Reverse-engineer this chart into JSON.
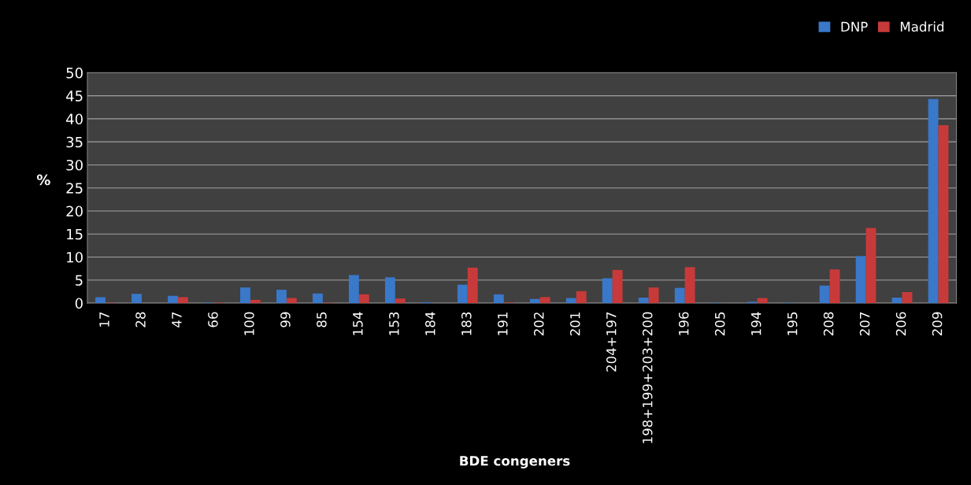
{
  "chart_data": {
    "type": "bar",
    "xlabel": "BDE congeners",
    "ylabel": "%",
    "categories": [
      "17",
      "28",
      "47",
      "66",
      "100",
      "99",
      "85",
      "154",
      "153",
      "184",
      "183",
      "191",
      "202",
      "201",
      "204+197",
      "198+199+203+200",
      "196",
      "205",
      "194",
      "195",
      "208",
      "207",
      "206",
      "209"
    ],
    "series": [
      {
        "name": "DNP",
        "color": "#3a78c9",
        "values": [
          1.3,
          2.0,
          1.6,
          0.1,
          3.4,
          2.9,
          2.1,
          6.1,
          5.6,
          0.2,
          4.0,
          1.9,
          0.9,
          1.1,
          5.4,
          1.2,
          3.3,
          0.1,
          0.3,
          0.1,
          3.8,
          10.2,
          1.2,
          44.3
        ]
      },
      {
        "name": "Madrid",
        "color": "#c83a3a",
        "values": [
          0.1,
          0,
          1.3,
          0.1,
          0.7,
          1.1,
          0.1,
          1.9,
          1.0,
          0,
          7.7,
          0.1,
          1.3,
          2.6,
          7.2,
          3.4,
          7.8,
          0,
          1.1,
          0,
          7.3,
          16.3,
          2.4,
          38.6
        ]
      }
    ],
    "ylim": [
      0,
      50
    ],
    "yticks": [
      0,
      5,
      10,
      15,
      20,
      25,
      30,
      35,
      40,
      45,
      50
    ],
    "grid": "y",
    "legend": "top right"
  }
}
